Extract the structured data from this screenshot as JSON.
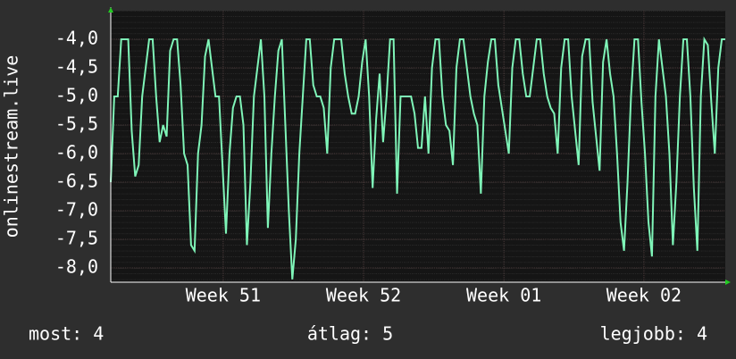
{
  "chart_data": {
    "type": "line",
    "y_label": "onlinestream.live",
    "series": [
      {
        "name": "onlinestream.live",
        "color": "#7ff5b8",
        "values": [
          -6.5,
          -5,
          -5,
          -4,
          -4,
          -4,
          -5.6,
          -6.4,
          -6.2,
          -5,
          -4.5,
          -4,
          -4,
          -5,
          -5.8,
          -5.5,
          -5.7,
          -4.2,
          -4,
          -4,
          -4.8,
          -6,
          -6.2,
          -7.6,
          -7.7,
          -6,
          -5.5,
          -4.3,
          -4,
          -4.5,
          -5,
          -5,
          -6.2,
          -7.4,
          -6,
          -5.2,
          -5,
          -5,
          -5.5,
          -7.6,
          -6.5,
          -5,
          -4.5,
          -4,
          -5,
          -7.3,
          -6,
          -5,
          -4.2,
          -4,
          -5.5,
          -7,
          -8.2,
          -7.5,
          -6,
          -5,
          -4,
          -4,
          -4.8,
          -5,
          -5,
          -5.2,
          -6,
          -4.5,
          -4,
          -4,
          -4,
          -4.6,
          -5,
          -5.3,
          -5.3,
          -5,
          -4.4,
          -4,
          -5,
          -6.6,
          -5.4,
          -4.6,
          -5.8,
          -5,
          -4,
          -4,
          -6.7,
          -5,
          -5,
          -5,
          -5,
          -5.3,
          -5.9,
          -5.9,
          -5,
          -6,
          -4.5,
          -4,
          -4,
          -5,
          -5.5,
          -5.6,
          -6.2,
          -4.5,
          -4,
          -4,
          -4.5,
          -5,
          -5.3,
          -5.5,
          -6.7,
          -5,
          -4.4,
          -4,
          -4,
          -4.8,
          -5.2,
          -5.6,
          -6,
          -4.5,
          -4,
          -4,
          -4.6,
          -5,
          -5,
          -4.5,
          -4,
          -4,
          -4.6,
          -5,
          -5.2,
          -5.3,
          -6,
          -4.5,
          -4,
          -4,
          -5,
          -5.6,
          -6.2,
          -4.3,
          -4,
          -4,
          -5.1,
          -5.7,
          -6.3,
          -4.4,
          -4,
          -4.6,
          -5,
          -6,
          -7.2,
          -7.7,
          -6.5,
          -5,
          -4,
          -4,
          -5.1,
          -6,
          -7.2,
          -7.8,
          -5,
          -4,
          -4.5,
          -5,
          -6,
          -7.6,
          -6.5,
          -5,
          -4,
          -4,
          -5,
          -6.6,
          -7.7,
          -5,
          -4,
          -4.1,
          -5.1,
          -6,
          -4.5,
          -4,
          -4
        ]
      }
    ],
    "xlim": [
      0,
      176
    ],
    "xticks": [
      {
        "value": 32.2,
        "label": "Week 51"
      },
      {
        "value": 72.4,
        "label": "Week 52"
      },
      {
        "value": 112.6,
        "label": "Week 01"
      },
      {
        "value": 152.7,
        "label": "Week 02"
      }
    ],
    "ylim": [
      -8.25,
      -3.5
    ],
    "yticks": [
      {
        "value": -4,
        "label": "-4,0"
      },
      {
        "value": -4.5,
        "label": "-4,5"
      },
      {
        "value": -5,
        "label": "-5,0"
      },
      {
        "value": -5.5,
        "label": "-5,5"
      },
      {
        "value": -6,
        "label": "-6,0"
      },
      {
        "value": -6.5,
        "label": "-6,5"
      },
      {
        "value": -7,
        "label": "-7,0"
      },
      {
        "value": -7.5,
        "label": "-7,5"
      },
      {
        "value": -8,
        "label": "-8,0"
      }
    ],
    "grid": true,
    "footer": {
      "current": "most: 4",
      "average": "átlag: 5",
      "best": "legjobb: 4"
    }
  }
}
